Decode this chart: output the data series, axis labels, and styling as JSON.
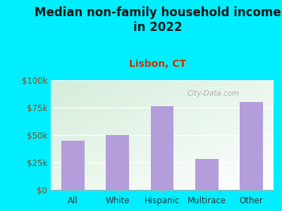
{
  "title": "Median non-family household income\nin 2022",
  "subtitle": "Lisbon, CT",
  "categories": [
    "All",
    "White",
    "Hispanic",
    "Multirace",
    "Other"
  ],
  "values": [
    45000,
    50000,
    76000,
    28000,
    80000
  ],
  "bar_color": "#b39ddb",
  "figure_bg": "#00eeff",
  "plot_bg_topleft": "#d4edda",
  "plot_bg_bottomright": "#ffffff",
  "title_color": "#1a1a1a",
  "subtitle_color": "#cc3300",
  "tick_label_color": "#8B4513",
  "xlabel_color": "#333333",
  "ylim": [
    0,
    100000
  ],
  "yticks": [
    0,
    25000,
    50000,
    75000,
    100000
  ],
  "ytick_labels": [
    "$0",
    "$25k",
    "$50k",
    "$75k",
    "$100k"
  ],
  "watermark": "City-Data.com",
  "title_fontsize": 12,
  "subtitle_fontsize": 10,
  "tick_fontsize": 8.5,
  "xtick_fontsize": 8.5
}
